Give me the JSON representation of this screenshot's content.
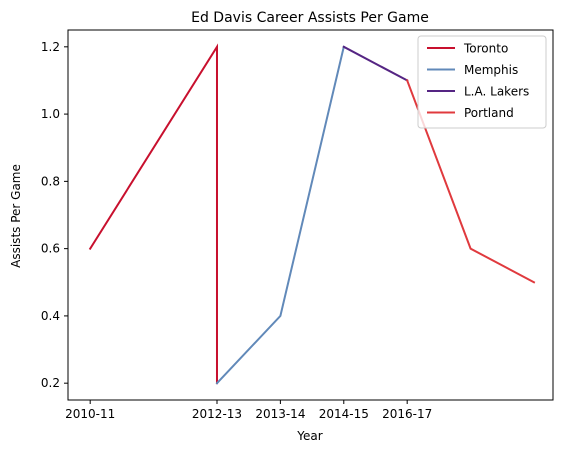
{
  "chart_data": {
    "type": "line",
    "title": "Ed Davis  Career Assists Per Game",
    "xlabel": "Year",
    "ylabel": "Assists Per Game",
    "x_ticks": [
      {
        "value": 0,
        "label": "2010-11"
      },
      {
        "value": 2,
        "label": "2012-13"
      },
      {
        "value": 3,
        "label": "2013-14"
      },
      {
        "value": 4,
        "label": "2014-15"
      },
      {
        "value": 5,
        "label": "2016-17"
      }
    ],
    "y_ticks": [
      0.2,
      0.4,
      0.6,
      0.8,
      1.0,
      1.2
    ],
    "xlim": [
      -0.35,
      7.3
    ],
    "ylim": [
      0.15,
      1.25
    ],
    "grid": false,
    "legend_position": "top-right",
    "series": [
      {
        "name": "Toronto",
        "color": "#c8102e",
        "points": [
          [
            0,
            0.6
          ],
          [
            2,
            1.2
          ],
          [
            2,
            0.2
          ]
        ]
      },
      {
        "name": "Memphis",
        "color": "#6189b9",
        "points": [
          [
            2,
            0.2
          ],
          [
            3,
            0.4
          ],
          [
            4,
            1.2
          ]
        ]
      },
      {
        "name": "L.A. Lakers",
        "color": "#552583",
        "points": [
          [
            4,
            1.2
          ],
          [
            5,
            1.1
          ]
        ]
      },
      {
        "name": "Portland",
        "color": "#e03a3e",
        "points": [
          [
            5,
            1.1
          ],
          [
            6,
            0.6
          ],
          [
            7,
            0.5
          ]
        ]
      }
    ]
  }
}
